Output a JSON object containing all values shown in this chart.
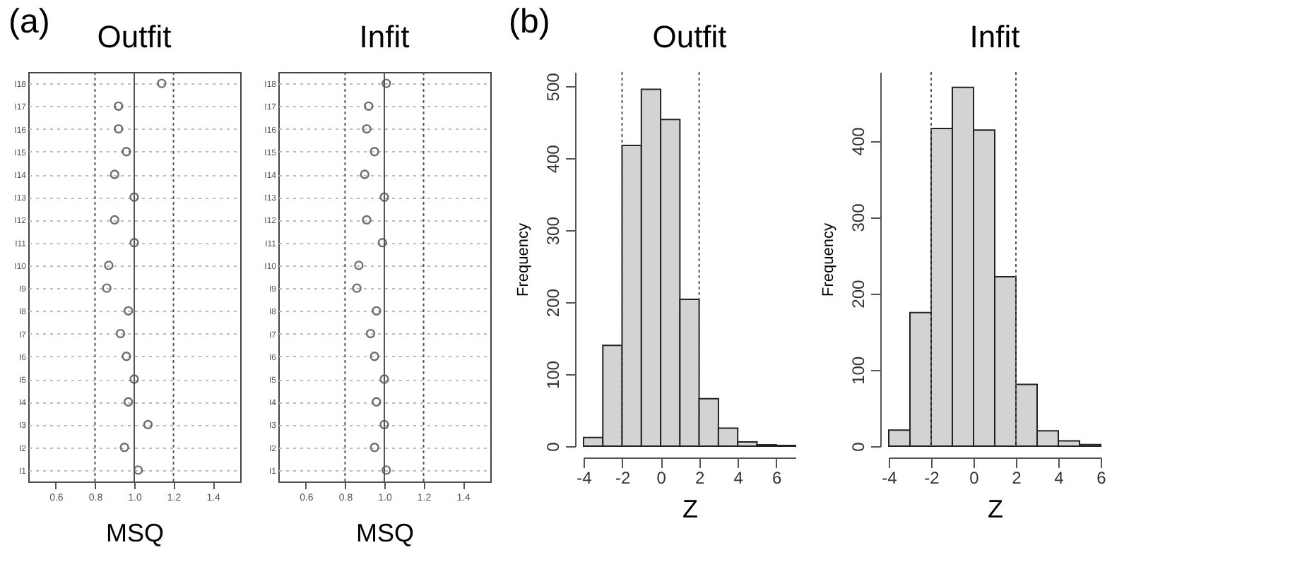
{
  "chart_data": [
    {
      "type": "scatter",
      "orientation": "horizontal",
      "title": "Outfit",
      "xlabel": "MSQ",
      "annotations": [
        "(a)"
      ],
      "marker": "circle",
      "color": "#333333",
      "grid": "y",
      "categories": [
        "I18",
        "I17",
        "I16",
        "I15",
        "I14",
        "I13",
        "I12",
        "I11",
        "I10",
        "I9",
        "I8",
        "I7",
        "I6",
        "I5",
        "I4",
        "I3",
        "I2",
        "I1"
      ],
      "values": [
        1.14,
        0.92,
        0.92,
        0.96,
        0.9,
        1.0,
        0.9,
        1.0,
        0.87,
        0.86,
        0.97,
        0.93,
        0.96,
        1.0,
        0.97,
        1.07,
        0.95,
        1.02
      ],
      "xlim": [
        0.46,
        1.54
      ],
      "xticks": [
        0.6,
        0.8,
        {
          "value": 1,
          "label": "1.0"
        },
        1.2,
        1.4
      ],
      "ref_lines": [
        {
          "axis": "x",
          "value": 0.8,
          "line_style": "dotted"
        },
        {
          "axis": "x",
          "value": 1.0,
          "line_style": "solid"
        },
        {
          "axis": "x",
          "value": 1.2,
          "line_style": "dotted"
        }
      ]
    },
    {
      "type": "scatter",
      "orientation": "horizontal",
      "title": "Infit",
      "xlabel": "MSQ",
      "marker": "circle",
      "color": "#333333",
      "grid": "y",
      "categories": [
        "I18",
        "I17",
        "I16",
        "I15",
        "I14",
        "I13",
        "I12",
        "I11",
        "I10",
        "I9",
        "I8",
        "I7",
        "I6",
        "I5",
        "I4",
        "I3",
        "I2",
        "I1"
      ],
      "values": [
        1.01,
        0.92,
        0.91,
        0.95,
        0.9,
        1.0,
        0.91,
        0.99,
        0.87,
        0.86,
        0.96,
        0.93,
        0.95,
        1.0,
        0.96,
        1.0,
        0.95,
        1.01
      ],
      "xlim": [
        0.46,
        1.54
      ],
      "xticks": [
        0.6,
        0.8,
        {
          "value": 1,
          "label": "1.0"
        },
        1.2,
        1.4
      ],
      "ref_lines": [
        {
          "axis": "x",
          "value": 0.8,
          "line_style": "dotted"
        },
        {
          "axis": "x",
          "value": 1.0,
          "line_style": "solid"
        },
        {
          "axis": "x",
          "value": 1.2,
          "line_style": "dotted"
        }
      ]
    },
    {
      "type": "histogram",
      "title": "Outfit",
      "xlabel": "Z",
      "ylabel": "Frequency",
      "annotations": [
        "(b)"
      ],
      "color": "#d3d3d3",
      "bins": [
        -4,
        -3,
        -2,
        -1,
        0,
        1,
        2,
        3,
        4,
        5,
        6,
        7
      ],
      "values": [
        12,
        140,
        418,
        496,
        454,
        204,
        66,
        25,
        6,
        2,
        1
      ],
      "xlim": [
        -4,
        7
      ],
      "xticks": [
        -4,
        -2,
        0,
        2,
        4,
        6
      ],
      "ylim": [
        0,
        520
      ],
      "yticks": [
        0,
        100,
        200,
        300,
        400,
        500
      ],
      "ref_lines": [
        {
          "axis": "x",
          "value": -2,
          "line_style": "dotted"
        },
        {
          "axis": "x",
          "value": 2,
          "line_style": "dotted"
        }
      ]
    },
    {
      "type": "histogram",
      "title": "Infit",
      "xlabel": "Z",
      "ylabel": "Frequency",
      "color": "#d3d3d3",
      "bins": [
        -4,
        -3,
        -2,
        -1,
        0,
        1,
        2,
        3,
        4,
        5,
        6
      ],
      "values": [
        21,
        175,
        416,
        470,
        414,
        222,
        81,
        20,
        7,
        2
      ],
      "xlim": [
        -4,
        6
      ],
      "xticks": [
        -4,
        -2,
        0,
        2,
        4,
        6
      ],
      "ylim": [
        0,
        490
      ],
      "yticks": [
        0,
        100,
        200,
        300,
        400
      ],
      "ref_lines": [
        {
          "axis": "x",
          "value": -2,
          "line_style": "dotted"
        },
        {
          "axis": "x",
          "value": 2,
          "line_style": "dotted"
        }
      ]
    }
  ]
}
